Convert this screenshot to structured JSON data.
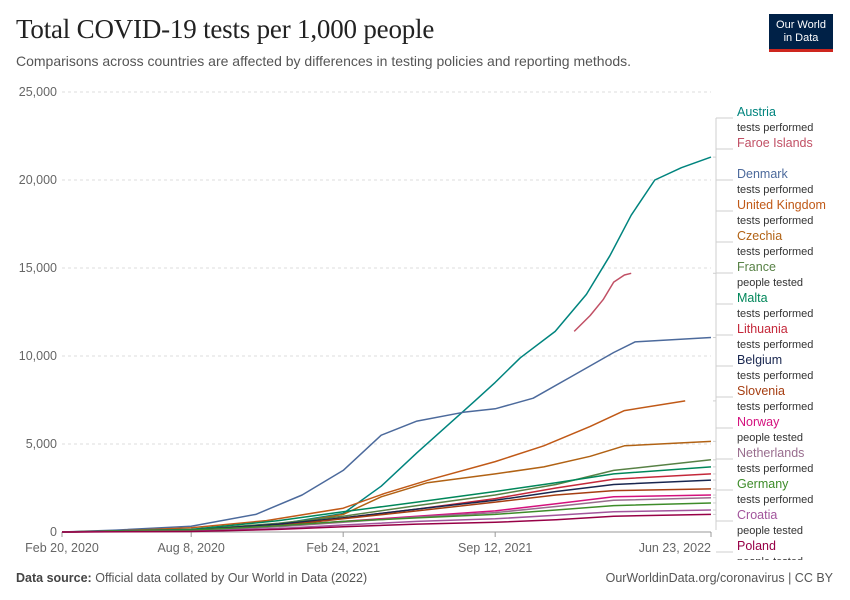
{
  "header": {
    "title": "Total COVID-19 tests per 1,000 people",
    "subtitle": "Comparisons across countries are affected by differences in testing policies and reporting methods."
  },
  "logo": {
    "line1": "Our World",
    "line2": "in Data"
  },
  "footer": {
    "source_label": "Data source:",
    "source_text": "Official data collated by Our World in Data (2022)",
    "right_text": "OurWorldinData.org/coronavirus | CC BY"
  },
  "chart_data": {
    "type": "line",
    "title": "Total COVID-19 tests per 1,000 people",
    "ylim": [
      0,
      25000
    ],
    "yticks": [
      0,
      5000,
      10000,
      15000,
      20000,
      25000
    ],
    "ytick_labels": [
      "0",
      "5,000",
      "10,000",
      "15,000",
      "20,000",
      "25,000"
    ],
    "x_range": [
      "2020-02-20",
      "2022-06-23"
    ],
    "xticks": [
      {
        "date": "2020-02-20",
        "label": "Feb 20, 2020"
      },
      {
        "date": "2020-08-08",
        "label": "Aug 8, 2020"
      },
      {
        "date": "2021-02-24",
        "label": "Feb 24, 2021"
      },
      {
        "date": "2021-09-12",
        "label": "Sep 12, 2021"
      },
      {
        "date": "2022-06-23",
        "label": "Jun 23, 2022"
      }
    ],
    "grid": true,
    "legend_position": "right",
    "series": [
      {
        "name": "Austria",
        "unit": "tests performed",
        "color": "#00847e",
        "points": [
          [
            "2020-02-20",
            0
          ],
          [
            "2020-08-08",
            110
          ],
          [
            "2020-12-01",
            450
          ],
          [
            "2021-02-24",
            1050
          ],
          [
            "2021-04-15",
            2600
          ],
          [
            "2021-06-01",
            4500
          ],
          [
            "2021-08-15",
            7400
          ],
          [
            "2021-09-12",
            8500
          ],
          [
            "2021-10-15",
            9900
          ],
          [
            "2021-11-30",
            11400
          ],
          [
            "2022-01-10",
            13500
          ],
          [
            "2022-02-10",
            15700
          ],
          [
            "2022-03-10",
            18000
          ],
          [
            "2022-04-10",
            20000
          ],
          [
            "2022-05-15",
            20700
          ],
          [
            "2022-06-23",
            21300
          ]
        ]
      },
      {
        "name": "Faroe Islands",
        "unit": "",
        "color": "#c15065",
        "points": [
          [
            "2021-12-25",
            11400
          ],
          [
            "2022-01-15",
            12300
          ],
          [
            "2022-02-01",
            13200
          ],
          [
            "2022-02-15",
            14200
          ],
          [
            "2022-03-01",
            14600
          ],
          [
            "2022-03-10",
            14700
          ]
        ]
      },
      {
        "name": "Denmark",
        "unit": "tests performed",
        "color": "#4c6a9c",
        "points": [
          [
            "2020-02-20",
            0
          ],
          [
            "2020-05-01",
            110
          ],
          [
            "2020-08-08",
            330
          ],
          [
            "2020-11-01",
            1000
          ],
          [
            "2021-01-01",
            2100
          ],
          [
            "2021-02-24",
            3500
          ],
          [
            "2021-04-15",
            5500
          ],
          [
            "2021-06-01",
            6300
          ],
          [
            "2021-08-01",
            6800
          ],
          [
            "2021-09-12",
            7000
          ],
          [
            "2021-11-01",
            7600
          ],
          [
            "2021-12-20",
            8800
          ],
          [
            "2022-02-15",
            10200
          ],
          [
            "2022-03-15",
            10800
          ],
          [
            "2022-06-23",
            11050
          ]
        ]
      },
      {
        "name": "United Kingdom",
        "unit": "tests performed",
        "color": "#c05917",
        "points": [
          [
            "2020-02-20",
            0
          ],
          [
            "2020-05-01",
            60
          ],
          [
            "2020-08-08",
            240
          ],
          [
            "2020-11-15",
            650
          ],
          [
            "2021-02-24",
            1350
          ],
          [
            "2021-04-20",
            2200
          ],
          [
            "2021-06-20",
            3000
          ],
          [
            "2021-09-12",
            4000
          ],
          [
            "2021-11-15",
            4900
          ],
          [
            "2022-01-15",
            6000
          ],
          [
            "2022-03-01",
            6900
          ],
          [
            "2022-05-20",
            7450
          ]
        ]
      },
      {
        "name": "Czechia",
        "unit": "tests performed",
        "color": "#b16214",
        "points": [
          [
            "2020-02-20",
            0
          ],
          [
            "2020-08-08",
            80
          ],
          [
            "2020-12-01",
            400
          ],
          [
            "2021-02-24",
            1000
          ],
          [
            "2021-04-15",
            2000
          ],
          [
            "2021-06-15",
            2800
          ],
          [
            "2021-09-12",
            3300
          ],
          [
            "2021-11-15",
            3700
          ],
          [
            "2022-01-15",
            4300
          ],
          [
            "2022-03-01",
            4900
          ],
          [
            "2022-06-23",
            5150
          ]
        ]
      },
      {
        "name": "France",
        "unit": "people tested",
        "color": "#578145",
        "points": [
          [
            "2020-02-20",
            0
          ],
          [
            "2020-08-08",
            120
          ],
          [
            "2020-12-01",
            500
          ],
          [
            "2021-02-24",
            900
          ],
          [
            "2021-06-01",
            1500
          ],
          [
            "2021-09-12",
            2100
          ],
          [
            "2021-12-01",
            2700
          ],
          [
            "2022-02-15",
            3500
          ],
          [
            "2022-06-23",
            4100
          ]
        ]
      },
      {
        "name": "Malta",
        "unit": "tests performed",
        "color": "#00875a",
        "points": [
          [
            "2020-02-20",
            0
          ],
          [
            "2020-08-08",
            150
          ],
          [
            "2020-12-01",
            650
          ],
          [
            "2021-02-24",
            1150
          ],
          [
            "2021-06-01",
            1700
          ],
          [
            "2021-09-12",
            2300
          ],
          [
            "2021-12-01",
            2800
          ],
          [
            "2022-02-15",
            3300
          ],
          [
            "2022-06-23",
            3700
          ]
        ]
      },
      {
        "name": "Lithuania",
        "unit": "tests performed",
        "color": "#c4283a",
        "points": [
          [
            "2020-02-20",
            0
          ],
          [
            "2020-08-08",
            90
          ],
          [
            "2020-12-01",
            400
          ],
          [
            "2021-02-24",
            800
          ],
          [
            "2021-06-01",
            1300
          ],
          [
            "2021-09-12",
            1900
          ],
          [
            "2021-12-01",
            2500
          ],
          [
            "2022-02-15",
            3000
          ],
          [
            "2022-06-23",
            3300
          ]
        ]
      },
      {
        "name": "Belgium",
        "unit": "tests performed",
        "color": "#18264f",
        "points": [
          [
            "2020-02-20",
            0
          ],
          [
            "2020-08-08",
            100
          ],
          [
            "2020-12-01",
            450
          ],
          [
            "2021-02-24",
            800
          ],
          [
            "2021-06-01",
            1300
          ],
          [
            "2021-09-12",
            1800
          ],
          [
            "2021-12-01",
            2300
          ],
          [
            "2022-02-15",
            2700
          ],
          [
            "2022-06-23",
            2950
          ]
        ]
      },
      {
        "name": "Slovenia",
        "unit": "tests performed",
        "color": "#a63e12",
        "points": [
          [
            "2020-02-20",
            0
          ],
          [
            "2020-08-08",
            70
          ],
          [
            "2020-12-01",
            350
          ],
          [
            "2021-02-24",
            750
          ],
          [
            "2021-06-01",
            1200
          ],
          [
            "2021-09-12",
            1700
          ],
          [
            "2021-12-01",
            2100
          ],
          [
            "2022-02-15",
            2350
          ],
          [
            "2022-06-23",
            2450
          ]
        ]
      },
      {
        "name": "Norway",
        "unit": "people tested",
        "color": "#d4117e",
        "points": [
          [
            "2020-02-20",
            0
          ],
          [
            "2020-08-08",
            90
          ],
          [
            "2020-12-01",
            350
          ],
          [
            "2021-02-24",
            600
          ],
          [
            "2021-06-01",
            900
          ],
          [
            "2021-09-12",
            1200
          ],
          [
            "2021-12-01",
            1600
          ],
          [
            "2022-02-15",
            2000
          ],
          [
            "2022-06-23",
            2100
          ]
        ]
      },
      {
        "name": "Netherlands",
        "unit": "tests performed",
        "color": "#996d8e",
        "points": [
          [
            "2020-02-20",
            0
          ],
          [
            "2020-08-08",
            60
          ],
          [
            "2020-12-01",
            300
          ],
          [
            "2021-02-24",
            550
          ],
          [
            "2021-06-01",
            850
          ],
          [
            "2021-09-12",
            1100
          ],
          [
            "2021-12-01",
            1450
          ],
          [
            "2022-02-15",
            1800
          ],
          [
            "2022-06-23",
            1950
          ]
        ]
      },
      {
        "name": "Germany",
        "unit": "tests performed",
        "color": "#3e8c2a",
        "points": [
          [
            "2020-02-20",
            0
          ],
          [
            "2020-08-08",
            110
          ],
          [
            "2020-12-01",
            350
          ],
          [
            "2021-02-24",
            600
          ],
          [
            "2021-06-01",
            800
          ],
          [
            "2021-09-12",
            1000
          ],
          [
            "2021-12-01",
            1250
          ],
          [
            "2022-02-15",
            1500
          ],
          [
            "2022-06-23",
            1650
          ]
        ]
      },
      {
        "name": "Croatia",
        "unit": "people tested",
        "color": "#a2559c",
        "points": [
          [
            "2020-02-20",
            0
          ],
          [
            "2020-08-08",
            40
          ],
          [
            "2020-12-01",
            200
          ],
          [
            "2021-02-24",
            400
          ],
          [
            "2021-06-01",
            600
          ],
          [
            "2021-09-12",
            750
          ],
          [
            "2021-12-01",
            950
          ],
          [
            "2022-02-15",
            1150
          ],
          [
            "2022-06-23",
            1250
          ]
        ]
      },
      {
        "name": "Poland",
        "unit": "people tested",
        "color": "#970046",
        "points": [
          [
            "2020-02-20",
            0
          ],
          [
            "2020-08-08",
            30
          ],
          [
            "2020-12-01",
            150
          ],
          [
            "2021-02-24",
            300
          ],
          [
            "2021-06-01",
            450
          ],
          [
            "2021-09-12",
            550
          ],
          [
            "2021-12-01",
            700
          ],
          [
            "2022-02-15",
            900
          ],
          [
            "2022-06-23",
            1000
          ]
        ]
      }
    ]
  }
}
